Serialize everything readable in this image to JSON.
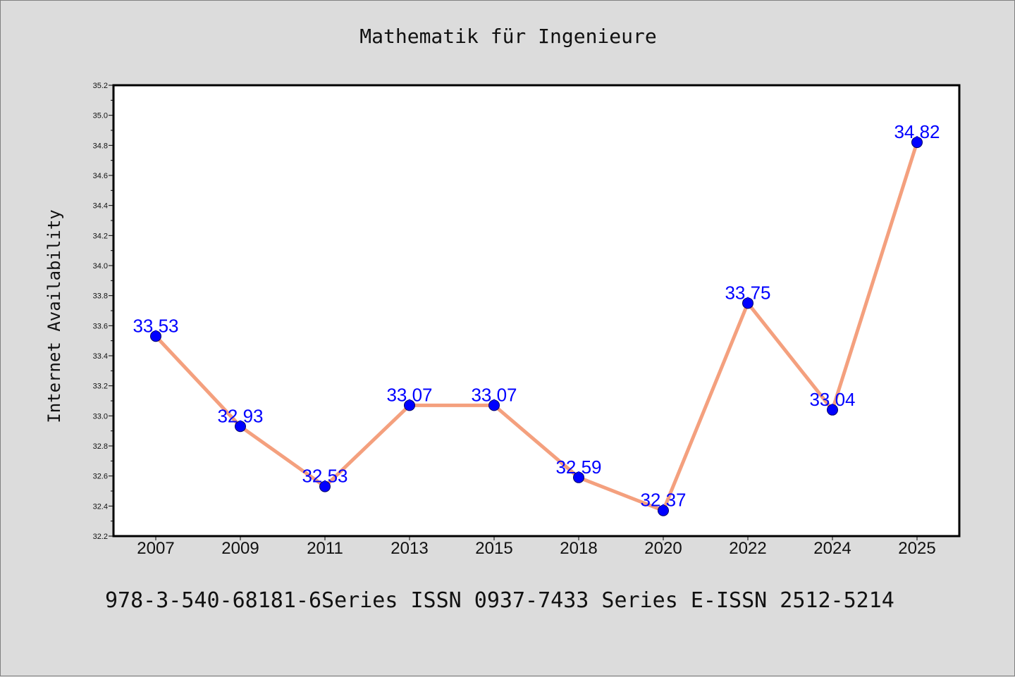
{
  "footer": "978-3-540-68181-6Series ISSN 0937-7433 Series E-ISSN 2512-5214",
  "chart_data": {
    "type": "line",
    "title": "Mathematik für Ingenieure",
    "xlabel": "",
    "ylabel": "Internet Availability",
    "categories": [
      "2007",
      "2009",
      "2011",
      "2013",
      "2015",
      "2018",
      "2020",
      "2022",
      "2024",
      "2025"
    ],
    "series": [
      {
        "values": [
          33.53,
          32.93,
          32.53,
          33.07,
          33.07,
          32.59,
          32.37,
          33.75,
          33.04,
          34.82
        ],
        "line_color": "#f4a07e",
        "marker_color": "#0000ff"
      }
    ],
    "data_labels": [
      "33.53",
      "32.93",
      "32.53",
      "33.07",
      "33.07",
      "32.59",
      "32.37",
      "33.75",
      "33.04",
      "34.82"
    ],
    "data_label_color": "#0000ff",
    "ylim": [
      32.2,
      35.2
    ],
    "yticks": [
      "32.2",
      "32.4",
      "32.6",
      "32.8",
      "33.0",
      "33.2",
      "33.4",
      "33.6",
      "33.8",
      "34.0",
      "34.2",
      "34.4",
      "34.6",
      "34.8",
      "35.0",
      "35.2"
    ],
    "grid": false,
    "legend": "none"
  }
}
